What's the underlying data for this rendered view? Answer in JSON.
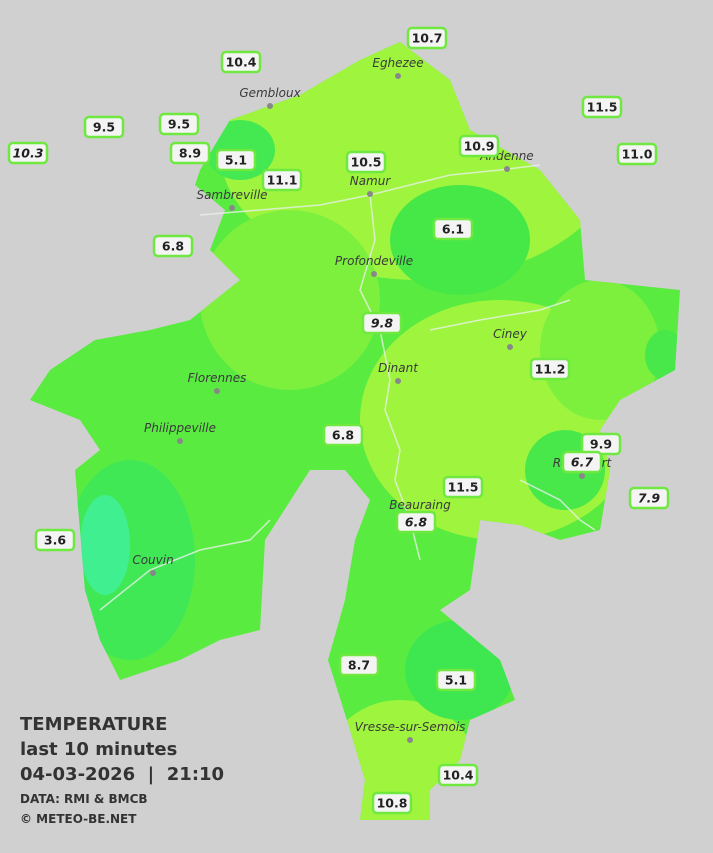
{
  "legend": {
    "title": "TEMPERATURE",
    "period": "last 10 minutes",
    "datetime": "04-03-2026  |  21:10",
    "source": "DATA: RMI & BMCB",
    "copyright": "© METEO-BE.NET"
  },
  "towns": [
    "Eghezee",
    "Gembloux",
    "Andenne",
    "Namur",
    "Sambreville",
    "Profondeville",
    "Ciney",
    "Dinant",
    "Florennes",
    "Philippeville",
    "Rochefort",
    "Beauraing",
    "Couvin",
    "Vresse-sur-Semois"
  ],
  "stations": [
    {
      "value": 10.7
    },
    {
      "value": 10.4
    },
    {
      "value": 11.5
    },
    {
      "value": 9.5
    },
    {
      "value": 9.5
    },
    {
      "value": 10.3,
      "italic": true
    },
    {
      "value": 8.9
    },
    {
      "value": 5.1
    },
    {
      "value": 10.9
    },
    {
      "value": 10.5
    },
    {
      "value": 11.0,
      "label": "11.0"
    },
    {
      "value": 11.1
    },
    {
      "value": 6.1
    },
    {
      "value": 6.8
    },
    {
      "value": 9.8,
      "italic": true
    },
    {
      "value": 11.2
    },
    {
      "value": 6.8
    },
    {
      "value": 9.9
    },
    {
      "value": 6.7,
      "italic": true
    },
    {
      "value": 11.5
    },
    {
      "value": 7.9,
      "italic": true
    },
    {
      "value": 6.8,
      "italic": true
    },
    {
      "value": 3.6
    },
    {
      "value": 8.7
    },
    {
      "value": 5.1
    },
    {
      "value": 10.4
    },
    {
      "value": 10.8
    }
  ]
}
